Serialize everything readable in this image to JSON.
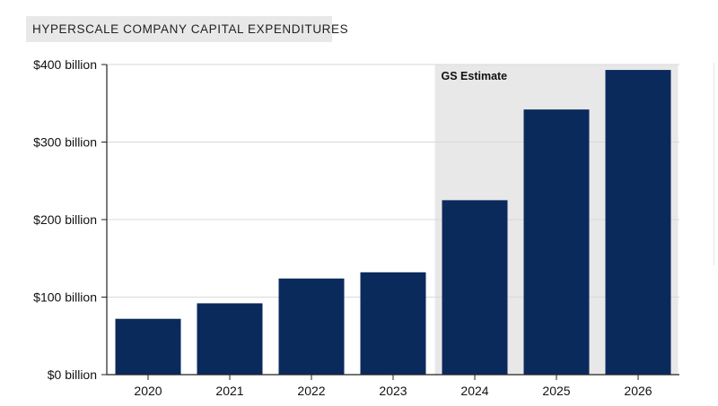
{
  "chart_data": {
    "type": "bar",
    "title": "HYPERSCALE COMPANY CAPITAL EXPENDITURES",
    "categories": [
      "2020",
      "2021",
      "2022",
      "2023",
      "2024",
      "2025",
      "2026"
    ],
    "values": [
      72,
      92,
      124,
      132,
      225,
      342,
      393
    ],
    "units": "billion",
    "ylim": [
      0,
      400
    ],
    "yticks": [
      0,
      100,
      200,
      300,
      400
    ],
    "ytick_labels": [
      "$0 billion",
      "$100 billion",
      "$200 billion",
      "$300 billion",
      "$400 billion"
    ],
    "xlabel": "",
    "ylabel": "",
    "grid": true,
    "estimate_band": {
      "label": "GS Estimate",
      "from_category": "2024",
      "to_category": "2026"
    }
  },
  "colors": {
    "bar": "#0b2a5c",
    "band": "#e8e8e8",
    "grid": "#d9d9d9",
    "axis": "#222222",
    "text": "#111111"
  }
}
